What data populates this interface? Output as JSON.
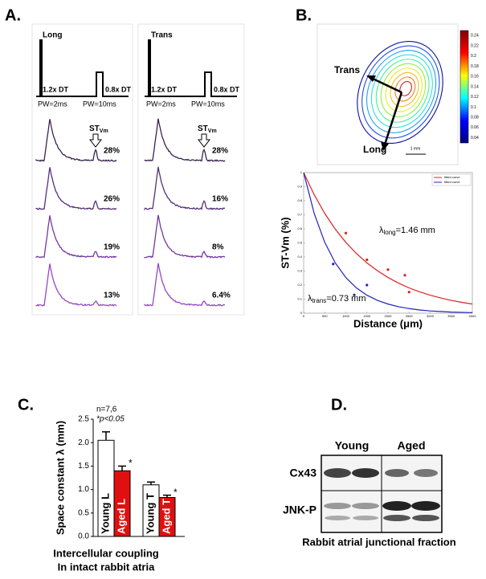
{
  "panels": {
    "a": {
      "label": "A.",
      "long": {
        "title": "Long",
        "pulse1": "1.2x DT",
        "pulse2": "0.8x DT",
        "pw1": "PW=2ms",
        "pw2": "PW=10ms",
        "percents": [
          "28%",
          "26%",
          "19%",
          "13%"
        ]
      },
      "trans": {
        "title": "Trans",
        "pulse1": "1.2x DT",
        "pulse2": "0.8x DT",
        "pw1": "PW=2ms",
        "pw2": "PW=10ms",
        "percents": [
          "28%",
          "16%",
          "8%",
          "6.4%"
        ]
      },
      "stvm": {
        "main": "ST",
        "sub": "Vm"
      }
    },
    "b": {
      "label": "B.",
      "trans": "Trans",
      "long": "Long",
      "scale": "1 mm",
      "colorbar": {
        "lim": [
          0.03,
          0.25
        ],
        "ticks": [
          0.24,
          0.22,
          0.2,
          0.18,
          0.16,
          0.14,
          0.12,
          0.1,
          0.08,
          0.06,
          0.04
        ]
      }
    },
    "c": {
      "label": "C."
    },
    "d": {
      "label": "D.",
      "groups": [
        "Young",
        "Aged"
      ],
      "rows": [
        "Cx43",
        "JNK-P"
      ],
      "caption": "Rabbit atrial junctional fraction"
    }
  },
  "chart_data": [
    {
      "type": "scatter",
      "x_label": "Distance (μm)",
      "y_label": "ST-Vm (%)",
      "xlim": [
        0,
        4000
      ],
      "xticks": [
        0,
        500,
        1000,
        1500,
        2000,
        2500,
        3000,
        3500,
        4000
      ],
      "ylim": [
        0,
        1
      ],
      "yticks": [
        0,
        0.1,
        0.2,
        0.3,
        0.4,
        0.5,
        0.6,
        0.7,
        0.8,
        0.9,
        1
      ],
      "legend": "upper right",
      "annotations": [
        {
          "symbol": "λ",
          "sub": "long",
          "rest": "=1.46 mm"
        },
        {
          "symbol": "λ",
          "sub": "trans",
          "rest": "=0.73 mm"
        }
      ],
      "series": [
        {
          "name": "fitted curve",
          "color": "#e02020",
          "style": "line",
          "x": [
            0,
            250,
            500,
            750,
            1000,
            1250,
            1500,
            1750,
            2000,
            2250,
            2500,
            2750,
            3000,
            3250,
            3500,
            3750,
            4000
          ],
          "values": [
            1,
            0.843,
            0.71,
            0.598,
            0.504,
            0.425,
            0.358,
            0.302,
            0.254,
            0.214,
            0.18,
            0.152,
            0.128,
            0.108,
            0.091,
            0.077,
            0.065
          ]
        },
        {
          "name": "fitted curve",
          "color": "#2020c0",
          "style": "line",
          "x": [
            0,
            250,
            500,
            750,
            1000,
            1250,
            1500,
            1750,
            2000,
            2250,
            2500,
            2750,
            3000,
            3250,
            3500,
            3750,
            4000
          ],
          "values": [
            1,
            0.71,
            0.504,
            0.358,
            0.254,
            0.18,
            0.128,
            0.091,
            0.065,
            0.046,
            0.033,
            0.023,
            0.016,
            0.012,
            0.008,
            0.006,
            0.004
          ]
        },
        {
          "color": "#e02020",
          "style": "markers",
          "x": [
            1000,
            1500,
            2000,
            2400,
            2500
          ],
          "values": [
            0.57,
            0.38,
            0.31,
            0.27,
            0.15
          ]
        },
        {
          "color": "#2020c0",
          "style": "markers",
          "x": [
            700,
            1200,
            1500
          ],
          "values": [
            0.35,
            0.13,
            0.2
          ]
        }
      ]
    },
    {
      "type": "bar",
      "y_label": "Space constant λ (mm)",
      "ylim": [
        0,
        2.5
      ],
      "yticks": [
        {
          "value": 0,
          "label": "0.0"
        },
        {
          "value": 0.5,
          "label": "0.5"
        },
        {
          "value": 1,
          "label": "1.0"
        },
        {
          "value": 1.5,
          "label": "1.5"
        },
        {
          "value": 2,
          "label": "2.0"
        },
        {
          "value": 2.5,
          "label": "2.5"
        }
      ],
      "categories": [
        "Young L",
        "Aged L",
        "Young T",
        "Aged T"
      ],
      "values": [
        2.05,
        1.4,
        1.1,
        0.83
      ],
      "errors": [
        0.18,
        0.1,
        0.06,
        0.05
      ],
      "colors": [
        "#ffffff",
        "#e01010",
        "#ffffff",
        "#e01010"
      ],
      "significance": [
        null,
        "*",
        null,
        "*"
      ],
      "annotations": [
        "n=7,6",
        "*p<0.05"
      ],
      "caption": [
        "Intercellular coupling",
        "In intact rabbit atria"
      ]
    }
  ]
}
